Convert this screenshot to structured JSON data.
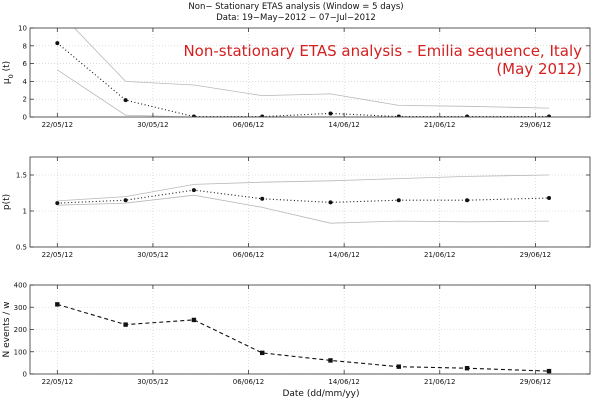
{
  "figure": {
    "title_line1": "Non− Stationary ETAS analysis (Window = 5 days)",
    "title_line2": "Data: 19−May−2012 − 07−Jul−2012",
    "annotation_line1": "Non-stationary ETAS analysis - Emilia sequence, Italy",
    "annotation_line2": "(May 2012)",
    "annotation_color": "#d42020",
    "xlabel": "Date (dd/mm/yy)"
  },
  "chart_data": [
    {
      "type": "line",
      "name": "mu",
      "ylabel": "μ",
      "ylabel_sub": "0",
      "ylabel_suffix": " (t)",
      "x": [
        0,
        5,
        10,
        15,
        20,
        25,
        30,
        36
      ],
      "series": [
        {
          "role": "estimate",
          "values": [
            8.3,
            1.9,
            0.05,
            0.05,
            0.4,
            0.05,
            0.05,
            0.05
          ],
          "style": "dotted"
        },
        {
          "role": "upper",
          "values": [
            12.0,
            4.0,
            3.6,
            2.4,
            2.6,
            1.3,
            1.2,
            1.0
          ],
          "style": "thin-gray"
        },
        {
          "role": "lower",
          "values": [
            5.3,
            0.2,
            0,
            0,
            0,
            0,
            0,
            0
          ],
          "style": "thin-gray"
        }
      ],
      "ylim": [
        0,
        10
      ],
      "yticks": [
        0,
        2,
        4,
        6,
        8,
        10
      ]
    },
    {
      "type": "line",
      "name": "p",
      "ylabel": "p(t)",
      "x": [
        0,
        5,
        10,
        15,
        20,
        25,
        30,
        36
      ],
      "series": [
        {
          "role": "estimate",
          "values": [
            1.11,
            1.15,
            1.29,
            1.17,
            1.12,
            1.15,
            1.15,
            1.18
          ],
          "style": "dotted"
        },
        {
          "role": "upper",
          "values": [
            1.14,
            1.2,
            1.37,
            1.4,
            1.42,
            1.45,
            1.48,
            1.5
          ],
          "style": "thin-gray"
        },
        {
          "role": "lower",
          "values": [
            1.08,
            1.11,
            1.22,
            1.05,
            0.83,
            0.86,
            0.85,
            0.86
          ],
          "style": "thin-gray"
        }
      ],
      "ylim": [
        0.5,
        1.75
      ],
      "yticks": [
        0.5,
        1,
        1.5
      ]
    },
    {
      "type": "line",
      "name": "nevents",
      "ylabel": "N events / w",
      "x": [
        0,
        5,
        10,
        15,
        20,
        25,
        30,
        36
      ],
      "series": [
        {
          "role": "counts",
          "values": [
            313,
            222,
            243,
            95,
            61,
            33,
            26,
            13
          ],
          "style": "dashed"
        }
      ],
      "ylim": [
        0,
        400
      ],
      "yticks": [
        0,
        100,
        200,
        300,
        400
      ]
    }
  ],
  "xaxis": {
    "tick_positions": [
      0,
      7,
      14,
      21,
      28,
      35
    ],
    "tick_labels": [
      "22/05/12",
      "30/05/12",
      "06/06/12",
      "14/06/12",
      "21/06/12",
      "29/06/12"
    ],
    "xlim": [
      -2,
      39
    ]
  }
}
